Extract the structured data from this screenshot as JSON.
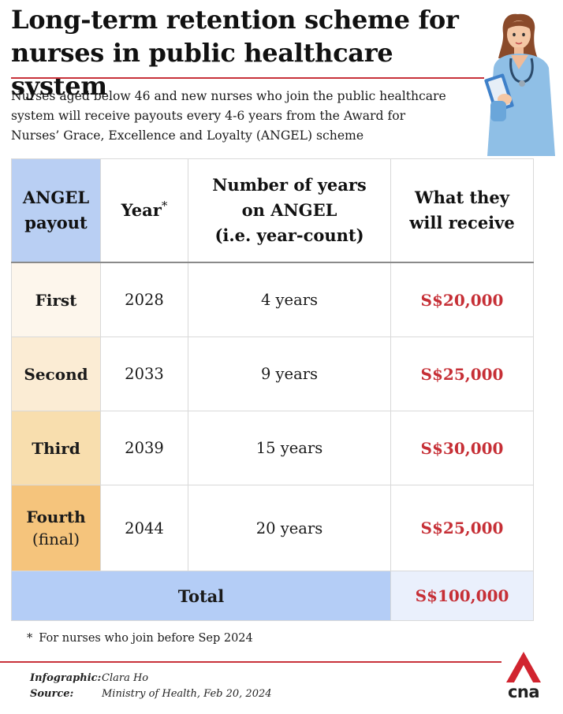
{
  "header": {
    "title_line1": "Long-term retention scheme for",
    "title_line2": "nurses in public healthcare system",
    "intro_line1": "Nurses aged below 46 and new nurses who join the public healthcare",
    "intro_line2": "system will receive payouts every 4-6 years from the Award for",
    "intro_line3": "Nurses’ Grace, Excellence and Loyalty (ANGEL) scheme"
  },
  "table": {
    "headers": {
      "payout_line1": "ANGEL",
      "payout_line2": "payout",
      "year": "Year",
      "year_marker": "*",
      "count_line1": "Number of years",
      "count_line2": "on ANGEL",
      "count_line3": "(i.e. year-count)",
      "receive_line1": "What they",
      "receive_line2": "will receive"
    },
    "rows": [
      {
        "payout": "First",
        "payout_sub": "",
        "year": "2028",
        "count": "4 years",
        "amount": "S$20,000",
        "color": "#fdf6ec"
      },
      {
        "payout": "Second",
        "payout_sub": "",
        "year": "2033",
        "count": "9 years",
        "amount": "S$25,000",
        "color": "#fbecd4"
      },
      {
        "payout": "Third",
        "payout_sub": "",
        "year": "2039",
        "count": "15 years",
        "amount": "S$30,000",
        "color": "#f8deae"
      },
      {
        "payout": "Fourth",
        "payout_sub": "(final)",
        "year": "2044",
        "count": "20 years",
        "amount": "S$25,000",
        "color": "#f5c47c"
      }
    ],
    "total_label": "Total",
    "total_amount": "S$100,000"
  },
  "footnote": {
    "marker": "*",
    "text": "For nurses who join before Sep 2024"
  },
  "credits": {
    "infographic_label": "Infographic:",
    "infographic_value": "Clara Ho",
    "source_label": "Source:",
    "source_value": "Ministry of Health, Feb 20, 2024"
  },
  "logo": {
    "text": "cna",
    "icon": "cna-logo-icon"
  },
  "illustration": {
    "icon": "nurse-with-clipboard-illustration"
  },
  "colors": {
    "accent_red": "#c8323a",
    "amount_red": "#c62f36",
    "header_blue": "#b9cff3",
    "total_blue": "#b4cdf6"
  }
}
